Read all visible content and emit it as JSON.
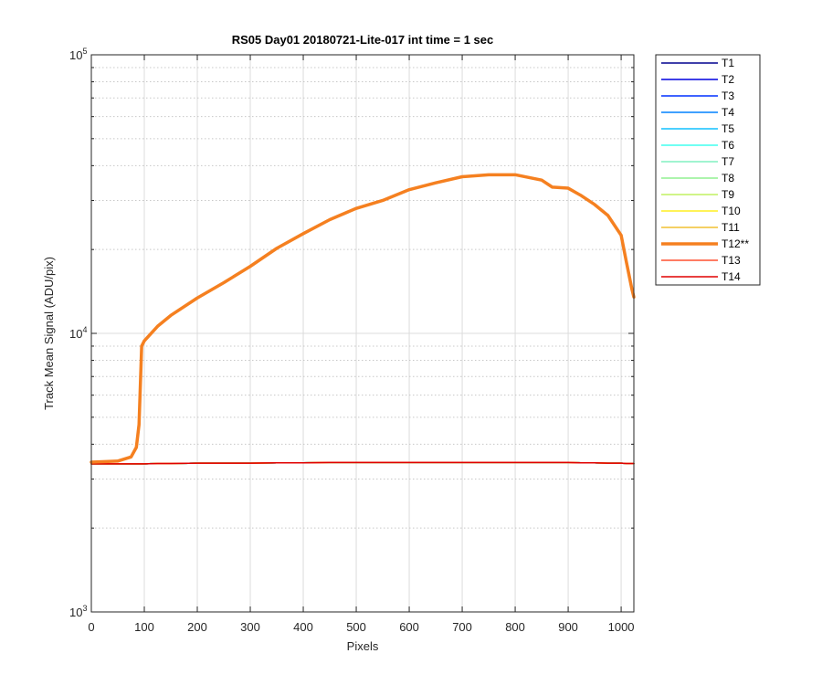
{
  "chart_data": {
    "type": "line",
    "title": "RS05 Day01 20180721-Lite-017 int time = 1 sec",
    "xlabel": "Pixels",
    "ylabel": "Track Mean Signal (ADU/pix)",
    "xlim": [
      0,
      1024
    ],
    "ylim": [
      1000,
      100000
    ],
    "yscale": "log",
    "grid": true,
    "legend_position": "outside-top-right",
    "x_ticks": [
      {
        "value": 0,
        "label": "0"
      },
      {
        "value": 100,
        "label": "100"
      },
      {
        "value": 200,
        "label": "200"
      },
      {
        "value": 300,
        "label": "300"
      },
      {
        "value": 400,
        "label": "400"
      },
      {
        "value": 500,
        "label": "500"
      },
      {
        "value": 600,
        "label": "600"
      },
      {
        "value": 700,
        "label": "700"
      },
      {
        "value": 800,
        "label": "800"
      },
      {
        "value": 900,
        "label": "900"
      },
      {
        "value": 1000,
        "label": "1000"
      }
    ],
    "y_ticks": [
      {
        "value": 1000,
        "base": "10",
        "exp": "3"
      },
      {
        "value": 10000,
        "base": "10",
        "exp": "4"
      },
      {
        "value": 100000,
        "base": "10",
        "exp": "5"
      }
    ],
    "x": [
      0,
      50,
      75,
      85,
      90,
      95,
      100,
      125,
      150,
      200,
      250,
      300,
      350,
      400,
      450,
      500,
      550,
      600,
      650,
      700,
      750,
      800,
      850,
      870,
      900,
      925,
      950,
      975,
      1000,
      1010,
      1020,
      1024
    ],
    "series": [
      {
        "name": "T1",
        "color": "#00008f",
        "width": 1.5,
        "values": [
          3400,
          3400,
          3400,
          3400,
          3400,
          3400,
          3400,
          3410,
          3410,
          3420,
          3420,
          3420,
          3430,
          3430,
          3440,
          3440,
          3440,
          3440,
          3440,
          3440,
          3440,
          3440,
          3440,
          3440,
          3440,
          3430,
          3430,
          3420,
          3420,
          3410,
          3410,
          3410
        ]
      },
      {
        "name": "T2",
        "color": "#0000df",
        "width": 1.5,
        "values": [
          3400,
          3400,
          3400,
          3400,
          3400,
          3400,
          3400,
          3410,
          3410,
          3420,
          3420,
          3420,
          3430,
          3430,
          3440,
          3440,
          3440,
          3440,
          3440,
          3440,
          3440,
          3440,
          3440,
          3440,
          3440,
          3430,
          3430,
          3420,
          3420,
          3410,
          3410,
          3410
        ]
      },
      {
        "name": "T3",
        "color": "#0030ff",
        "width": 1.5,
        "values": [
          3400,
          3400,
          3400,
          3400,
          3400,
          3400,
          3400,
          3410,
          3410,
          3420,
          3420,
          3420,
          3430,
          3430,
          3440,
          3440,
          3440,
          3440,
          3440,
          3440,
          3440,
          3440,
          3440,
          3440,
          3440,
          3430,
          3430,
          3420,
          3420,
          3410,
          3410,
          3410
        ]
      },
      {
        "name": "T4",
        "color": "#0080ff",
        "width": 1.5,
        "values": [
          3400,
          3400,
          3400,
          3400,
          3400,
          3400,
          3400,
          3410,
          3410,
          3420,
          3420,
          3420,
          3430,
          3430,
          3440,
          3440,
          3440,
          3440,
          3440,
          3440,
          3440,
          3440,
          3440,
          3440,
          3440,
          3430,
          3430,
          3420,
          3420,
          3410,
          3410,
          3410
        ]
      },
      {
        "name": "T5",
        "color": "#10c0ff",
        "width": 1.5,
        "values": [
          3400,
          3400,
          3400,
          3400,
          3400,
          3400,
          3400,
          3410,
          3410,
          3420,
          3420,
          3420,
          3430,
          3430,
          3440,
          3440,
          3440,
          3440,
          3440,
          3440,
          3440,
          3440,
          3440,
          3440,
          3440,
          3430,
          3430,
          3420,
          3420,
          3410,
          3410,
          3410
        ]
      },
      {
        "name": "T6",
        "color": "#40ffef",
        "width": 1.5,
        "values": [
          3400,
          3400,
          3400,
          3400,
          3400,
          3400,
          3400,
          3410,
          3410,
          3420,
          3420,
          3420,
          3430,
          3430,
          3440,
          3440,
          3440,
          3440,
          3440,
          3440,
          3440,
          3440,
          3440,
          3440,
          3440,
          3430,
          3430,
          3420,
          3420,
          3410,
          3410,
          3410
        ]
      },
      {
        "name": "T7",
        "color": "#80f0c0",
        "width": 1.5,
        "values": [
          3400,
          3400,
          3400,
          3400,
          3400,
          3400,
          3400,
          3410,
          3410,
          3420,
          3420,
          3420,
          3430,
          3430,
          3440,
          3440,
          3440,
          3440,
          3440,
          3440,
          3440,
          3440,
          3440,
          3440,
          3440,
          3430,
          3430,
          3420,
          3420,
          3410,
          3410,
          3410
        ]
      },
      {
        "name": "T8",
        "color": "#90f090",
        "width": 1.5,
        "values": [
          3400,
          3400,
          3400,
          3400,
          3400,
          3400,
          3400,
          3410,
          3410,
          3420,
          3420,
          3420,
          3430,
          3430,
          3440,
          3440,
          3440,
          3440,
          3440,
          3440,
          3440,
          3440,
          3440,
          3440,
          3440,
          3430,
          3430,
          3420,
          3420,
          3410,
          3410,
          3410
        ]
      },
      {
        "name": "T9",
        "color": "#c0f060",
        "width": 1.5,
        "values": [
          3400,
          3400,
          3400,
          3400,
          3400,
          3400,
          3400,
          3410,
          3410,
          3420,
          3420,
          3420,
          3430,
          3430,
          3440,
          3440,
          3440,
          3440,
          3440,
          3440,
          3440,
          3440,
          3440,
          3440,
          3440,
          3430,
          3430,
          3420,
          3420,
          3410,
          3410,
          3410
        ]
      },
      {
        "name": "T10",
        "color": "#ffef20",
        "width": 1.5,
        "values": [
          3400,
          3400,
          3400,
          3400,
          3400,
          3400,
          3400,
          3410,
          3410,
          3420,
          3420,
          3420,
          3430,
          3430,
          3440,
          3440,
          3440,
          3440,
          3440,
          3440,
          3440,
          3440,
          3440,
          3440,
          3440,
          3430,
          3430,
          3420,
          3420,
          3410,
          3410,
          3410
        ]
      },
      {
        "name": "T11",
        "color": "#f0c030",
        "width": 1.5,
        "values": [
          3400,
          3400,
          3400,
          3400,
          3400,
          3400,
          3400,
          3410,
          3410,
          3420,
          3420,
          3420,
          3430,
          3430,
          3440,
          3440,
          3440,
          3440,
          3440,
          3440,
          3440,
          3440,
          3440,
          3440,
          3440,
          3430,
          3430,
          3420,
          3420,
          3410,
          3410,
          3410
        ]
      },
      {
        "name": "T12**",
        "color": "#f58020",
        "width": 3.5,
        "values": [
          3450,
          3480,
          3600,
          3900,
          4700,
          9000,
          9400,
          10600,
          11600,
          13400,
          15200,
          17400,
          20200,
          22800,
          25600,
          28100,
          30000,
          32800,
          34700,
          36500,
          37100,
          37100,
          35500,
          33500,
          33200,
          31200,
          29000,
          26500,
          22500,
          18000,
          14500,
          13500
        ]
      },
      {
        "name": "T13",
        "color": "#ff5030",
        "width": 1.5,
        "values": [
          3400,
          3400,
          3400,
          3400,
          3400,
          3400,
          3400,
          3410,
          3410,
          3420,
          3420,
          3420,
          3430,
          3430,
          3440,
          3440,
          3440,
          3440,
          3440,
          3440,
          3440,
          3440,
          3440,
          3440,
          3440,
          3430,
          3430,
          3420,
          3420,
          3410,
          3410,
          3410
        ]
      },
      {
        "name": "T14",
        "color": "#e00000",
        "width": 1.5,
        "values": [
          3400,
          3400,
          3400,
          3400,
          3400,
          3400,
          3400,
          3410,
          3410,
          3420,
          3420,
          3420,
          3430,
          3430,
          3440,
          3440,
          3440,
          3440,
          3440,
          3440,
          3440,
          3440,
          3440,
          3440,
          3440,
          3430,
          3430,
          3420,
          3420,
          3410,
          3410,
          3410
        ]
      }
    ]
  }
}
